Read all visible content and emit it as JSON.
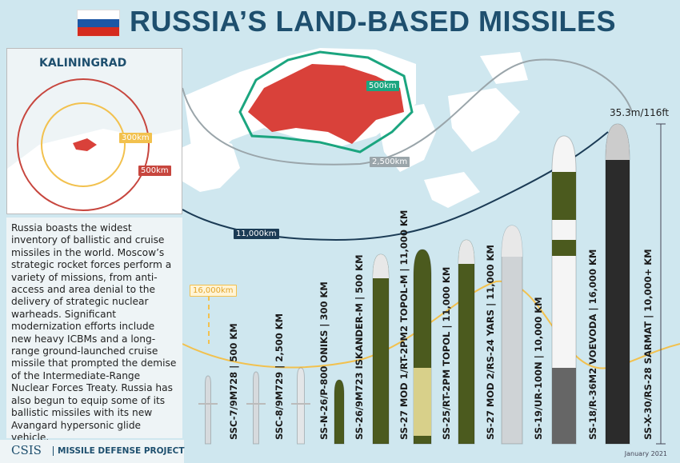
{
  "title": "RUSSIA’S LAND-BASED MISSILES",
  "flag_colors": [
    "#ffffff",
    "#1c57a5",
    "#d52b1e"
  ],
  "inset": {
    "label": "KALININGRAD",
    "ranges": [
      "300km",
      "500km"
    ]
  },
  "map_ranges": [
    "500km",
    "2,500km",
    "11,000km",
    "16,000km"
  ],
  "colors": {
    "russia": "#d9413a",
    "green_ring": "#1ba57f",
    "orange": "#e8872e",
    "yellow": "#f2c14e",
    "navy": "#1b3b55",
    "grey": "#9aa",
    "title": "#1e4f6e"
  },
  "description": "Russia boasts the widest inventory of ballistic and cruise missiles in the world. Moscow’s strategic rocket forces perform a variety of missions, from anti-access and area denial to the delivery of strategic nuclear warheads. Significant modernization efforts include new heavy ICBMs and a long-range ground-launched cruise missile that prompted the demise of the Intermediate-Range Nuclear Forces Treaty. Russia has also begun to equip some of its ballistic missiles with its new Avangard hypersonic glide vehicle.",
  "footer": {
    "org": "CSIS",
    "project": "MISSILE DEFENSE PROJECT",
    "date": "January 2021"
  },
  "scale_label": "35.3m/116ft",
  "missiles": [
    {
      "label": "SSC-7/9M728 | 500 KM",
      "type": "cruise"
    },
    {
      "label": "SSC-8/9M729 | 2,500 KM",
      "type": "cruise"
    },
    {
      "label": "SS-N-26/P-800 ONIKS | 300 KM",
      "type": "cruise-white"
    },
    {
      "label": "SS-26/9M723 ISKANDER-M | 500 KM",
      "type": "green-small"
    },
    {
      "label": "SS-27 MOD 1/RT-2PM2 TOPOL-M | 11,000 KM",
      "type": "green"
    },
    {
      "label": "SS-25/RT-2PM TOPOL | 11,000 KM",
      "type": "topol"
    },
    {
      "label": "SS-27 MOD 2/RS-24 YARS | 11,000 KM",
      "type": "green"
    },
    {
      "label": "SS-19/UR-100N | 10,000 KM",
      "type": "silver"
    },
    {
      "label": "SS-18/R-36M2 VOEVODA | 16,000 KM",
      "type": "voevoda"
    },
    {
      "label": "SS-X-30/RS-28 SARMAT | 10,000+ KM",
      "type": "black"
    }
  ]
}
